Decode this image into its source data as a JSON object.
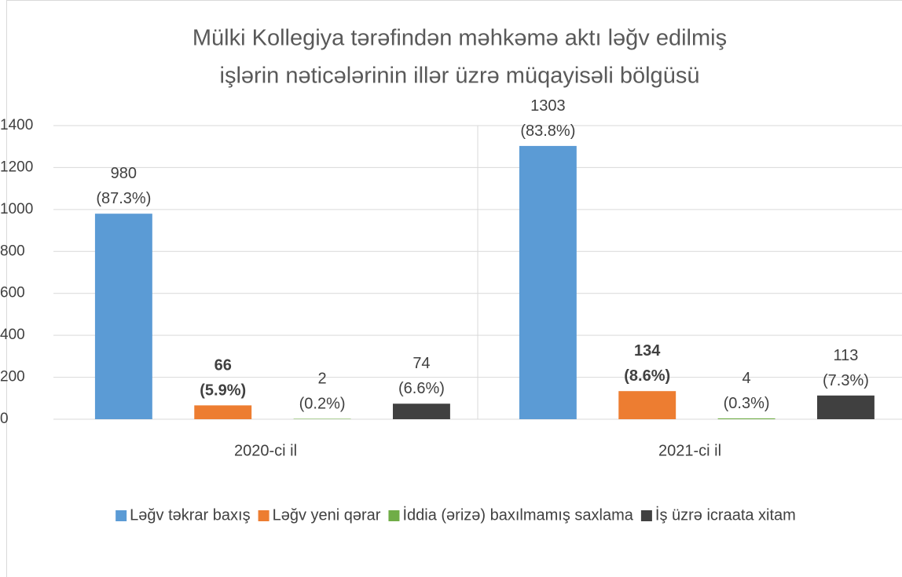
{
  "chart_data": {
    "type": "bar",
    "title": [
      "Mülki Kollegiya tərəfindən məhkəmə aktı ləğv edilmiş",
      "işlərin nəticələrinin illər üzrə müqayisəli bölgüsü"
    ],
    "categories": [
      "2020-ci il",
      "2021-ci il"
    ],
    "series": [
      {
        "name": "Ləğv təkrar baxış",
        "color": "#5b9bd5",
        "values": [
          980,
          1303
        ],
        "value_labels": [
          "980\n(87.3%)",
          "1303\n(83.8%)"
        ]
      },
      {
        "name": "Ləğv yeni qərar",
        "color": "#ed7d31",
        "values": [
          66,
          134
        ],
        "value_labels": [
          "66\n(5.9%)",
          "134\n(8.6%)"
        ],
        "label_bold": true
      },
      {
        "name": "İddia (ərizə) baxılmamış saxlama",
        "color": "#70ad47",
        "values": [
          2,
          4
        ],
        "value_labels": [
          "2\n(0.2%)",
          "4\n(0.3%)"
        ]
      },
      {
        "name": "İş üzrə icraata xitam",
        "color": "#404040",
        "values": [
          74,
          113
        ],
        "value_labels": [
          "74\n(6.6%)",
          "113\n(7.3%)"
        ]
      }
    ],
    "ylim": [
      0,
      1400
    ],
    "yticks": [
      0,
      200,
      400,
      600,
      800,
      1000,
      1200,
      1400
    ],
    "grid": true,
    "legend": "bottom"
  }
}
